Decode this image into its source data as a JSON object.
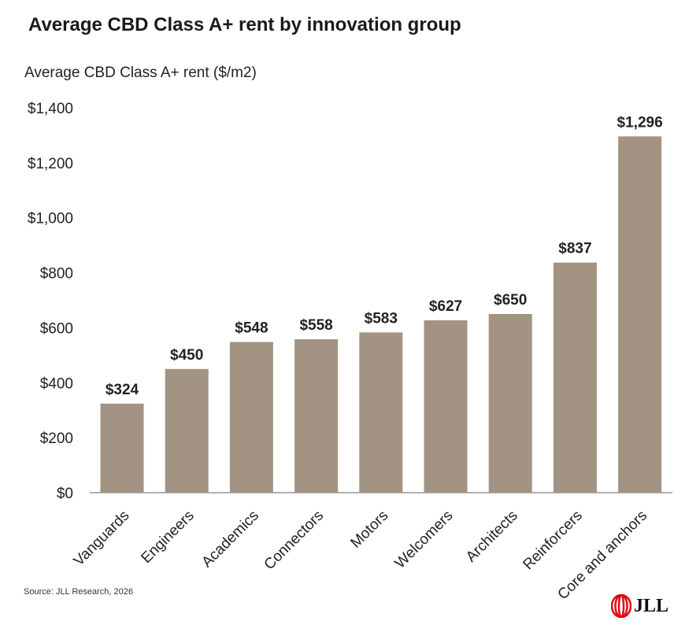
{
  "chart_data": {
    "type": "bar",
    "title": "Average CBD Class A+ rent by innovation group",
    "ylabel": "Average CBD Class A+ rent ($/m2)",
    "xlabel": "",
    "categories": [
      "Vanguards",
      "Engineers",
      "Academics",
      "Connectors",
      "Motors",
      "Welcomers",
      "Architects",
      "Reinforcers",
      "Core and anchors"
    ],
    "values": [
      324,
      450,
      548,
      558,
      583,
      627,
      650,
      837,
      1296
    ],
    "data_labels": [
      "$324",
      "$450",
      "$548",
      "$558",
      "$583",
      "$627",
      "$650",
      "$837",
      "$1,296"
    ],
    "ylim": [
      0,
      1400
    ],
    "yticks": [
      0,
      200,
      400,
      600,
      800,
      1000,
      1200,
      1400
    ],
    "ytick_labels": [
      "$0",
      "$200",
      "$400",
      "$600",
      "$800",
      "$1,000",
      "$1,200",
      "$1,400"
    ],
    "grid": false,
    "bar_color": "#A39383"
  },
  "source": "Source: JLL Research, 2026",
  "logo": {
    "text": "JLL",
    "color": "#E30613"
  }
}
